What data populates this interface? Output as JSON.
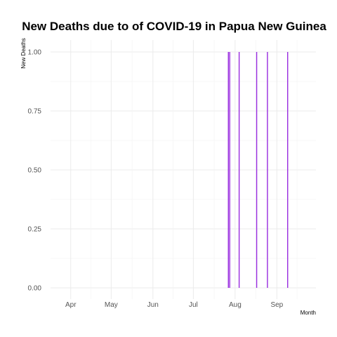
{
  "chart_data": {
    "type": "bar",
    "title": "New Deaths due to of COVID-19 in Papua New Guinea",
    "xlabel": "Month",
    "ylabel": "New Deaths",
    "x_ticks": [
      "Apr",
      "May",
      "Jun",
      "Jul",
      "Aug",
      "Sep"
    ],
    "x_tick_dates": [
      "2020-04-01",
      "2020-05-01",
      "2020-06-01",
      "2020-07-01",
      "2020-08-01",
      "2020-09-01"
    ],
    "y_ticks": [
      "0.00",
      "0.25",
      "0.50",
      "0.75",
      "1.00"
    ],
    "ylim": [
      0,
      1
    ],
    "xlim": [
      "2020-03-17",
      "2020-09-30"
    ],
    "grid": true,
    "bar_color": "#9b30e0",
    "points": [
      {
        "x": "2020-07-27",
        "y": 1
      },
      {
        "x": "2020-07-28",
        "y": 1
      },
      {
        "x": "2020-08-04",
        "y": 1
      },
      {
        "x": "2020-08-17",
        "y": 1
      },
      {
        "x": "2020-08-25",
        "y": 1
      },
      {
        "x": "2020-09-09",
        "y": 1
      }
    ]
  }
}
